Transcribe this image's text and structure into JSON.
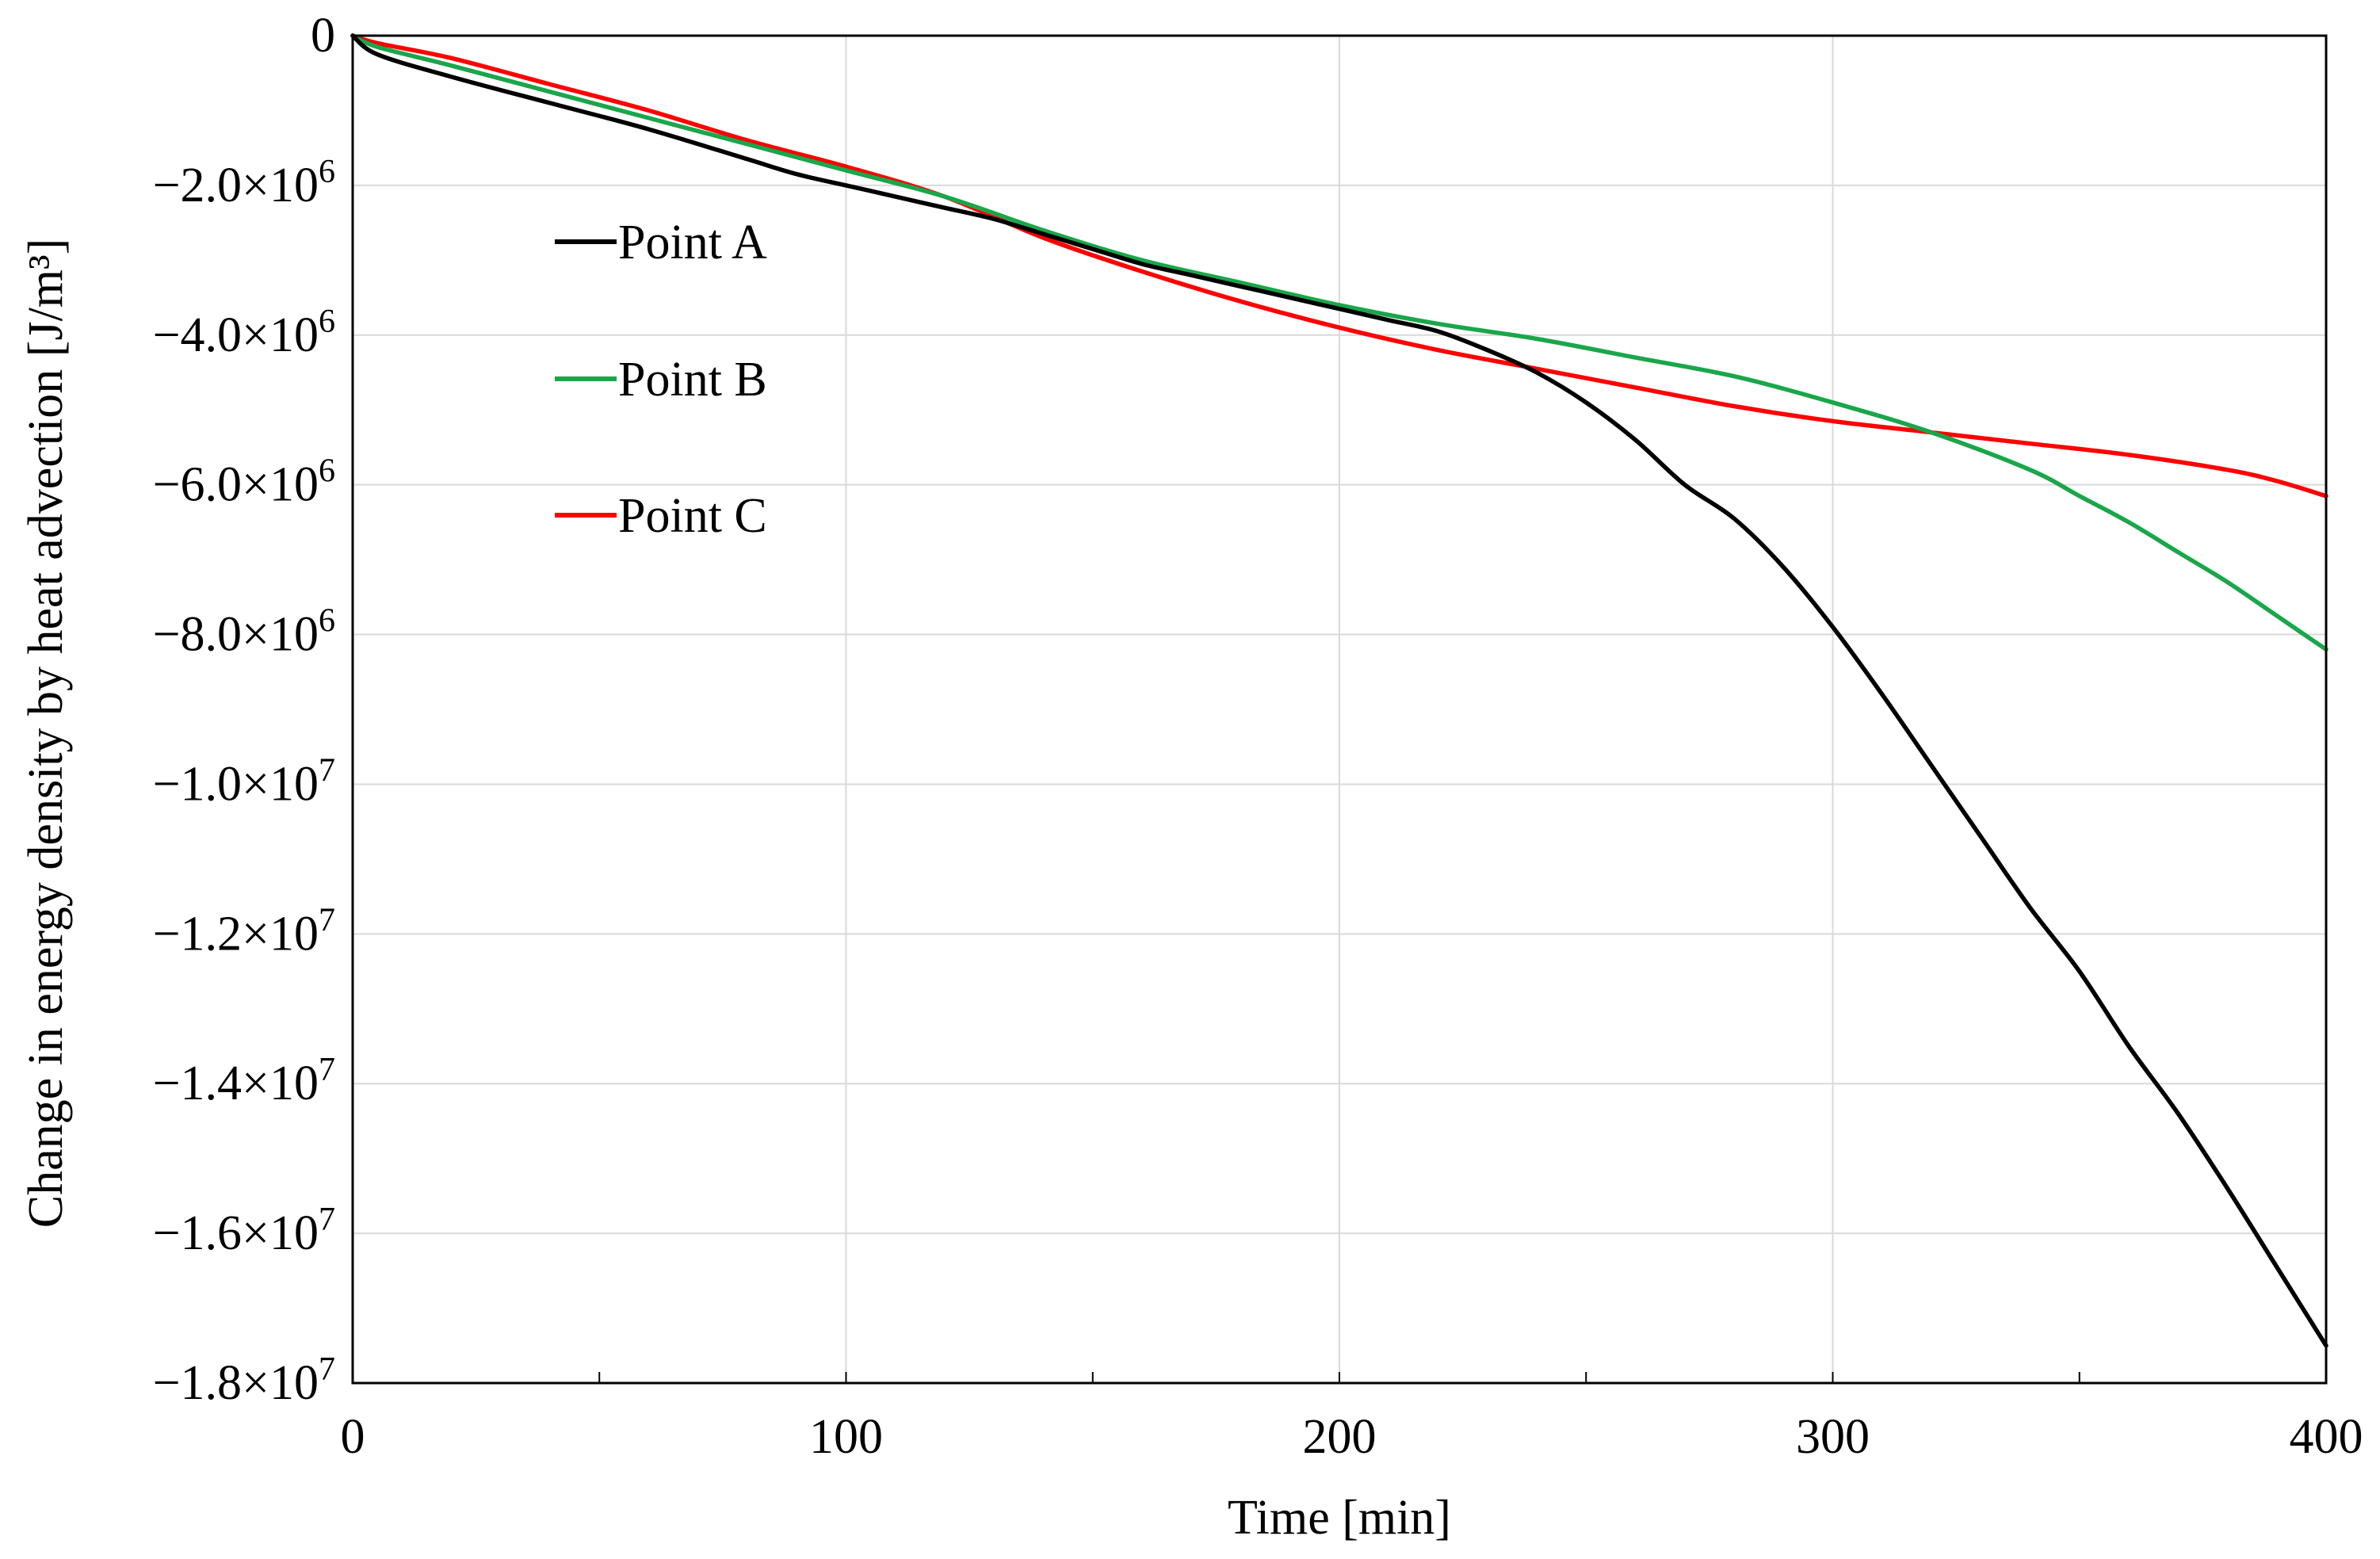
{
  "chart_data": {
    "type": "line",
    "title": "",
    "xlabel": "Time [min]",
    "ylabel": "Change in energy density by heat advection [J/m³]",
    "xlim": [
      0,
      400
    ],
    "ylim": [
      -18000000,
      0
    ],
    "grid": true,
    "legend_position": "top-left",
    "x_ticks": [
      {
        "value": 0,
        "label": "0"
      },
      {
        "value": 100,
        "label": "100"
      },
      {
        "value": 200,
        "label": "200"
      },
      {
        "value": 300,
        "label": "300"
      },
      {
        "value": 400,
        "label": "400"
      }
    ],
    "x_minor_ticks": [
      50,
      150,
      250,
      350
    ],
    "y_ticks": [
      {
        "value": 0,
        "mant": "0",
        "exp": ""
      },
      {
        "value": -2000000,
        "mant": "−2.0×10",
        "exp": "6"
      },
      {
        "value": -4000000,
        "mant": "−4.0×10",
        "exp": "6"
      },
      {
        "value": -6000000,
        "mant": "−6.0×10",
        "exp": "6"
      },
      {
        "value": -8000000,
        "mant": "−8.0×10",
        "exp": "6"
      },
      {
        "value": -10000000,
        "mant": "−1.0×10",
        "exp": "7"
      },
      {
        "value": -12000000,
        "mant": "−1.2×10",
        "exp": "7"
      },
      {
        "value": -14000000,
        "mant": "−1.4×10",
        "exp": "7"
      },
      {
        "value": -16000000,
        "mant": "−1.6×10",
        "exp": "7"
      },
      {
        "value": -18000000,
        "mant": "−1.8×10",
        "exp": "7"
      }
    ],
    "series": [
      {
        "name": "Point A",
        "color": "#000000",
        "x": [
          0,
          5,
          20,
          40,
          60,
          80,
          90,
          100,
          110,
          120,
          130,
          140,
          150,
          160,
          170,
          180,
          190,
          200,
          210,
          220,
          230,
          240,
          250,
          260,
          270,
          280,
          290,
          300,
          310,
          320,
          330,
          340,
          350,
          360,
          370,
          380,
          390,
          400
        ],
        "y": [
          0,
          -250000,
          -550000,
          -900000,
          -1250000,
          -1650000,
          -1850000,
          -2000000,
          -2150000,
          -2300000,
          -2450000,
          -2650000,
          -2850000,
          -3050000,
          -3200000,
          -3350000,
          -3500000,
          -3650000,
          -3800000,
          -3950000,
          -4200000,
          -4500000,
          -4900000,
          -5400000,
          -6000000,
          -6450000,
          -7100000,
          -7900000,
          -8800000,
          -9750000,
          -10700000,
          -11650000,
          -12500000,
          -13500000,
          -14400000,
          -15400000,
          -16450000,
          -17500000
        ]
      },
      {
        "name": "Point B",
        "color": "#1aa64a",
        "x": [
          0,
          5,
          20,
          40,
          60,
          80,
          100,
          120,
          140,
          160,
          180,
          200,
          220,
          240,
          260,
          280,
          300,
          320,
          340,
          350,
          360,
          370,
          380,
          390,
          400
        ],
        "y": [
          0,
          -150000,
          -400000,
          -750000,
          -1100000,
          -1450000,
          -1800000,
          -2150000,
          -2600000,
          -3000000,
          -3300000,
          -3600000,
          -3850000,
          -4050000,
          -4300000,
          -4550000,
          -4900000,
          -5300000,
          -5800000,
          -6150000,
          -6500000,
          -6900000,
          -7300000,
          -7750000,
          -8200000
        ]
      },
      {
        "name": "Point C",
        "color": "#ff0000",
        "x": [
          0,
          5,
          20,
          40,
          60,
          80,
          100,
          120,
          140,
          160,
          180,
          200,
          220,
          240,
          260,
          280,
          300,
          320,
          340,
          360,
          380,
          390,
          400
        ],
        "y": [
          0,
          -100000,
          -300000,
          -650000,
          -1000000,
          -1400000,
          -1750000,
          -2150000,
          -2700000,
          -3150000,
          -3550000,
          -3900000,
          -4200000,
          -4450000,
          -4700000,
          -4950000,
          -5150000,
          -5300000,
          -5450000,
          -5600000,
          -5800000,
          -5950000,
          -6150000
        ]
      }
    ]
  }
}
